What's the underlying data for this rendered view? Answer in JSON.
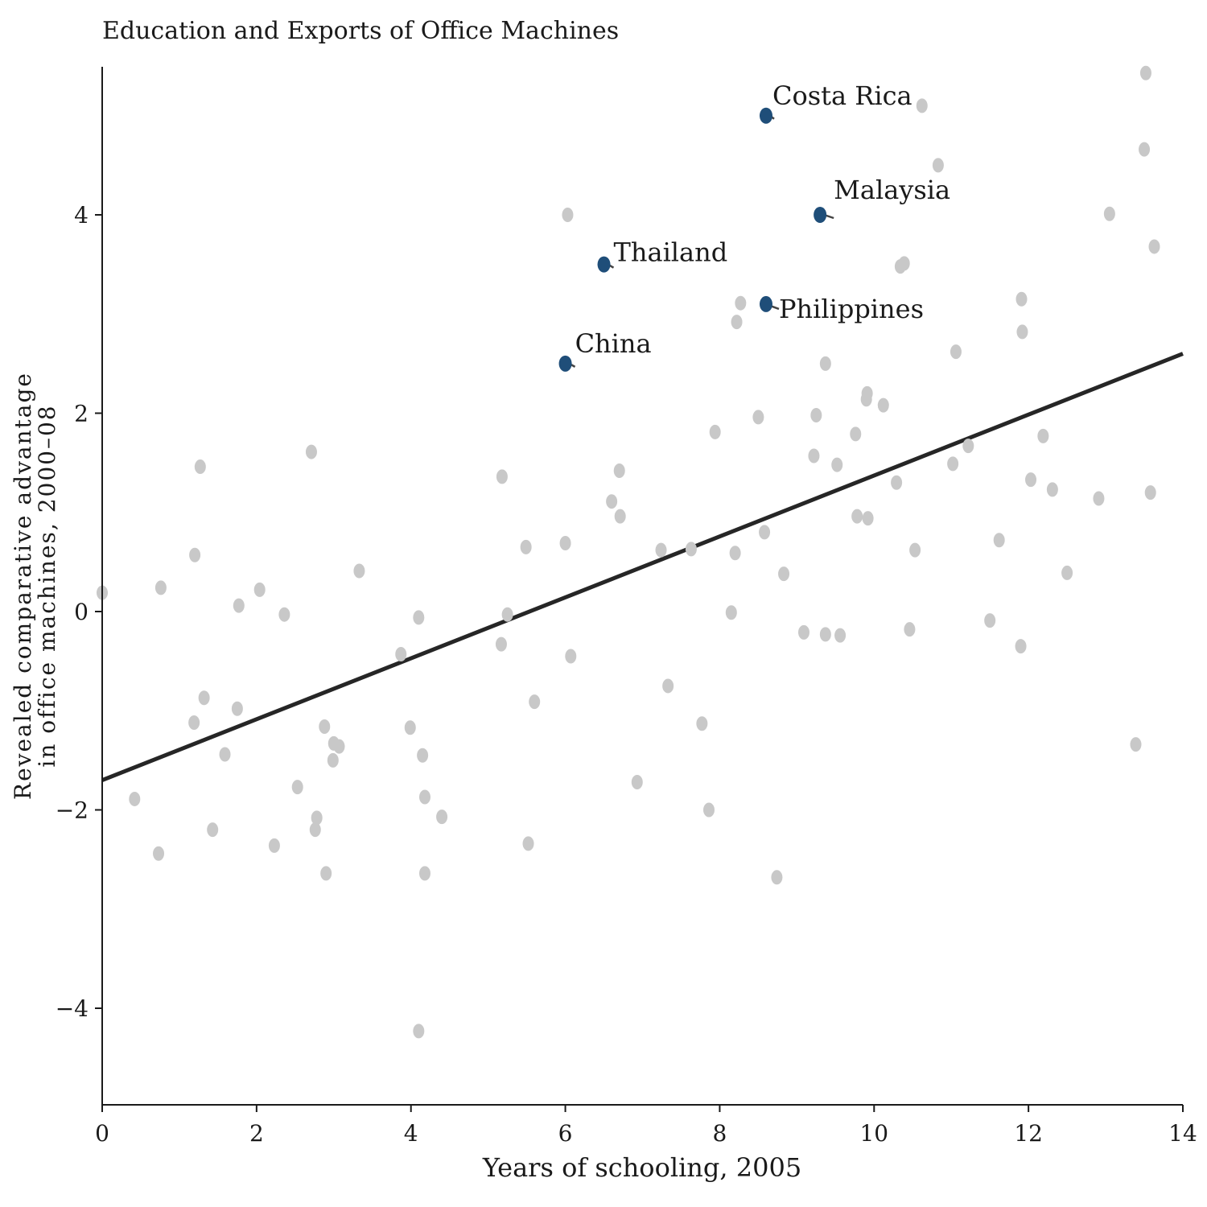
{
  "chart_data": {
    "type": "scatter",
    "title": "Education and Exports of Office Machines",
    "xlabel": "Years of schooling, 2005",
    "ylabel_lines": [
      "Revealed comparative advantage",
      "in office machines, 2000–08"
    ],
    "xlim": [
      0,
      14
    ],
    "ylim": [
      -5,
      5.5
    ],
    "xticks": [
      0,
      2,
      4,
      6,
      8,
      10,
      12,
      14
    ],
    "yticks": [
      -4,
      -2,
      0,
      2,
      4
    ],
    "xtick_labels": [
      "0",
      "2",
      "4",
      "6",
      "8",
      "10",
      "12",
      "14"
    ],
    "ytick_labels": [
      "−4",
      "−2",
      "0",
      "2",
      "4"
    ],
    "grid": false,
    "point_color": "#c8c8c8",
    "highlight_color": "#1f4e79",
    "line_color": "#262626",
    "fit_line": {
      "x": [
        0,
        14
      ],
      "y": [
        -1.7,
        2.6
      ]
    },
    "highlighted": [
      {
        "label": "Costa Rica",
        "x": 8.6,
        "y": 5.0
      },
      {
        "label": "Malaysia",
        "x": 9.3,
        "y": 4.0
      },
      {
        "label": "Thailand",
        "x": 6.5,
        "y": 3.5
      },
      {
        "label": "Philippines",
        "x": 8.6,
        "y": 3.1
      },
      {
        "label": "China",
        "x": 6.0,
        "y": 2.5
      }
    ],
    "points": [
      [
        0.0,
        0.19
      ],
      [
        0.42,
        -1.89
      ],
      [
        0.73,
        -2.44
      ],
      [
        0.76,
        0.24
      ],
      [
        1.19,
        -1.12
      ],
      [
        1.2,
        0.57
      ],
      [
        1.27,
        1.46
      ],
      [
        1.32,
        -0.87
      ],
      [
        1.43,
        -2.2
      ],
      [
        1.59,
        -1.44
      ],
      [
        1.75,
        -0.98
      ],
      [
        1.77,
        0.06
      ],
      [
        2.04,
        0.22
      ],
      [
        2.23,
        -2.36
      ],
      [
        2.36,
        -0.03
      ],
      [
        2.53,
        -1.77
      ],
      [
        2.71,
        1.61
      ],
      [
        2.76,
        -2.2
      ],
      [
        2.78,
        -2.08
      ],
      [
        2.88,
        -1.16
      ],
      [
        2.9,
        -2.64
      ],
      [
        2.99,
        -1.5
      ],
      [
        3.0,
        -1.33
      ],
      [
        3.07,
        -1.36
      ],
      [
        3.33,
        0.41
      ],
      [
        3.87,
        -0.43
      ],
      [
        3.99,
        -1.17
      ],
      [
        4.1,
        -0.06
      ],
      [
        4.1,
        -4.23
      ],
      [
        4.15,
        -1.45
      ],
      [
        4.18,
        -1.87
      ],
      [
        4.18,
        -2.64
      ],
      [
        4.4,
        -2.07
      ],
      [
        5.17,
        -0.33
      ],
      [
        5.18,
        1.36
      ],
      [
        5.25,
        -0.03
      ],
      [
        5.49,
        0.65
      ],
      [
        5.52,
        -2.34
      ],
      [
        5.6,
        -0.91
      ],
      [
        6.0,
        0.69
      ],
      [
        6.03,
        4.0
      ],
      [
        6.07,
        -0.45
      ],
      [
        6.6,
        1.11
      ],
      [
        6.7,
        1.42
      ],
      [
        6.71,
        0.96
      ],
      [
        6.93,
        -1.72
      ],
      [
        7.24,
        0.62
      ],
      [
        7.33,
        -0.75
      ],
      [
        7.63,
        0.63
      ],
      [
        7.77,
        -1.13
      ],
      [
        7.86,
        -2.0
      ],
      [
        7.94,
        1.81
      ],
      [
        8.15,
        -0.01
      ],
      [
        8.2,
        0.59
      ],
      [
        8.22,
        2.92
      ],
      [
        8.27,
        3.11
      ],
      [
        8.5,
        1.96
      ],
      [
        8.58,
        0.8
      ],
      [
        8.74,
        -2.68
      ],
      [
        8.83,
        0.38
      ],
      [
        9.09,
        -0.21
      ],
      [
        9.22,
        1.57
      ],
      [
        9.25,
        1.98
      ],
      [
        9.37,
        -0.23
      ],
      [
        9.37,
        2.5
      ],
      [
        9.52,
        1.48
      ],
      [
        9.56,
        -0.24
      ],
      [
        9.76,
        1.79
      ],
      [
        9.78,
        0.96
      ],
      [
        9.9,
        2.14
      ],
      [
        9.91,
        2.2
      ],
      [
        9.92,
        0.94
      ],
      [
        10.12,
        2.08
      ],
      [
        10.29,
        1.3
      ],
      [
        10.34,
        3.48
      ],
      [
        10.39,
        3.51
      ],
      [
        10.46,
        -0.18
      ],
      [
        10.53,
        0.62
      ],
      [
        10.62,
        5.1
      ],
      [
        10.83,
        4.5
      ],
      [
        11.02,
        1.49
      ],
      [
        11.06,
        2.62
      ],
      [
        11.22,
        1.67
      ],
      [
        11.5,
        -0.09
      ],
      [
        11.62,
        0.72
      ],
      [
        11.9,
        -0.35
      ],
      [
        11.91,
        3.15
      ],
      [
        11.92,
        2.82
      ],
      [
        12.03,
        1.33
      ],
      [
        12.19,
        1.77
      ],
      [
        12.31,
        1.23
      ],
      [
        12.5,
        0.39
      ],
      [
        12.91,
        1.14
      ],
      [
        13.05,
        4.01
      ],
      [
        13.39,
        -1.34
      ],
      [
        13.5,
        4.66
      ],
      [
        13.52,
        5.43
      ],
      [
        13.58,
        1.2
      ],
      [
        13.63,
        3.68
      ]
    ]
  }
}
